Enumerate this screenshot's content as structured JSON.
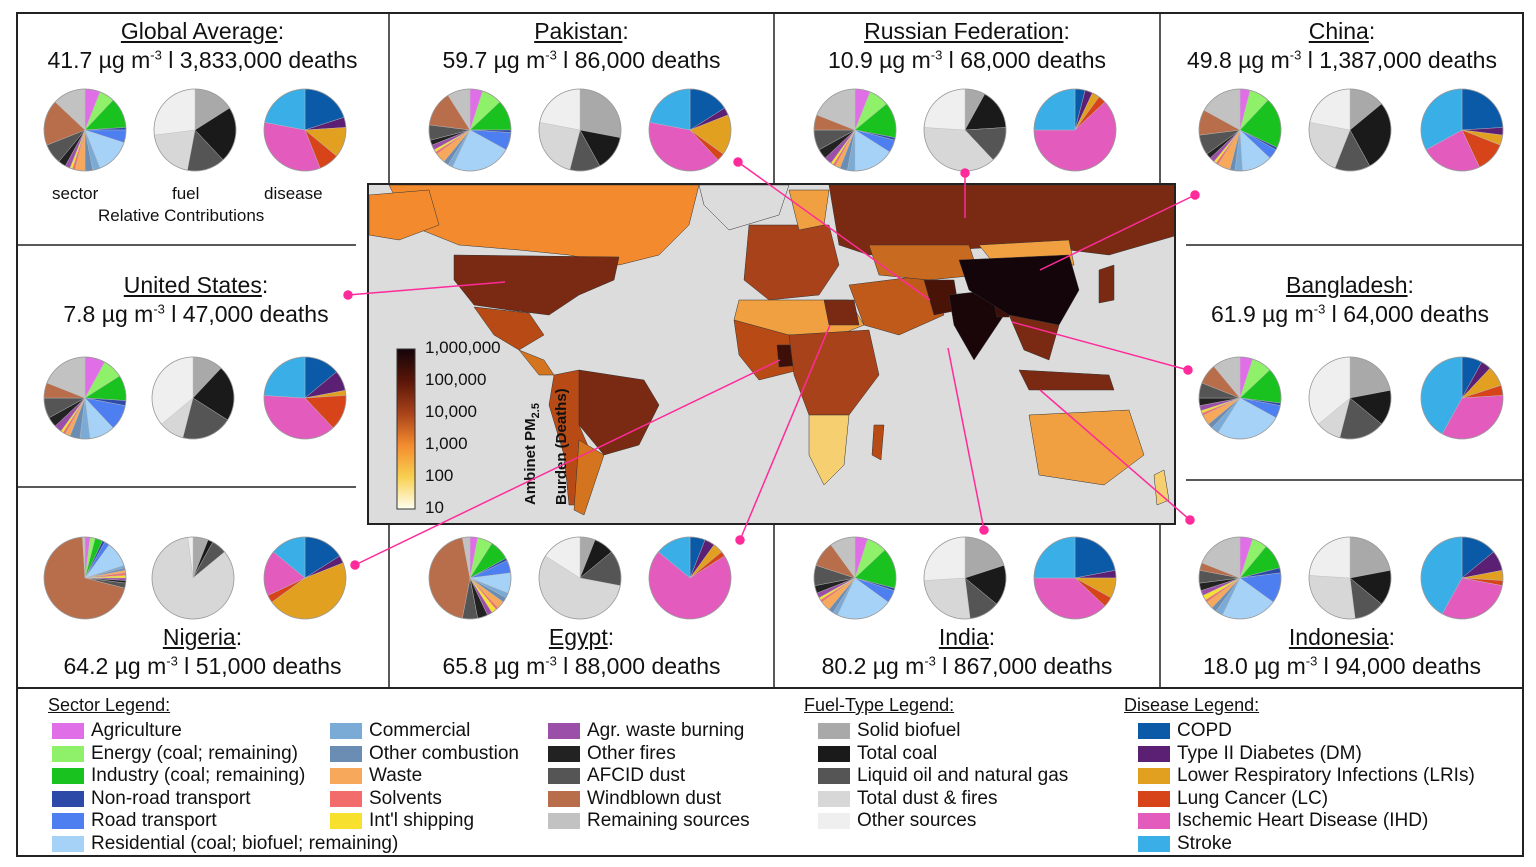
{
  "panels": [
    {
      "key": "global",
      "name": "Global Average",
      "pm": "41.7",
      "deaths": "3,833,000"
    },
    {
      "key": "pakistan",
      "name": "Pakistan",
      "pm": "59.7",
      "deaths": "86,000"
    },
    {
      "key": "russia",
      "name": "Russian Federation",
      "pm": "10.9",
      "deaths": "68,000"
    },
    {
      "key": "china",
      "name": "China",
      "pm": "49.8",
      "deaths": "1,387,000"
    },
    {
      "key": "us",
      "name": "United States",
      "pm": "7.8",
      "deaths": "47,000"
    },
    {
      "key": "bangladesh",
      "name": "Bangladesh",
      "pm": "61.9",
      "deaths": "64,000"
    },
    {
      "key": "nigeria",
      "name": "Nigeria",
      "pm": "64.2",
      "deaths": "51,000"
    },
    {
      "key": "egypt",
      "name": "Egypt",
      "pm": "65.8",
      "deaths": "88,000"
    },
    {
      "key": "india",
      "name": "India",
      "pm": "80.2",
      "deaths": "867,000"
    },
    {
      "key": "indonesia",
      "name": "Indonesia",
      "pm": "18.0",
      "deaths": "94,000"
    }
  ],
  "units": {
    "pm_unit": "µg m",
    "pm_exp": "-3",
    "sep": " l ",
    "deaths_word": "deaths"
  },
  "pie_captions": {
    "sector": "sector",
    "fuel": "fuel",
    "disease": "disease",
    "relative": "Relative Contributions"
  },
  "colorbar": {
    "ticks": [
      "1,000,000",
      "100,000",
      "10,000",
      "1,000",
      "100",
      "10"
    ],
    "label_line1": "Ambinet PM",
    "label_sub": "2.5",
    "label_line2": "Burden (Deaths)"
  },
  "legends": {
    "sector_title": "Sector Legend:",
    "fuel_title": "Fuel-Type Legend:",
    "disease_title": "Disease Legend:",
    "sector": [
      {
        "label": "Agriculture",
        "color": "#e06ee6"
      },
      {
        "label": "Energy (coal; remaining)",
        "color": "#8ff06a"
      },
      {
        "label": "Industry (coal; remaining)",
        "color": "#19c21e"
      },
      {
        "label": "Non-road transport",
        "color": "#2d4aa8"
      },
      {
        "label": "Road transport",
        "color": "#4e7ff0"
      },
      {
        "label": "Residential (coal; biofuel; remaining)",
        "color": "#a6d2f7"
      },
      {
        "label": "Commercial",
        "color": "#7aaad6"
      },
      {
        "label": "Other combustion",
        "color": "#6b8cb3"
      },
      {
        "label": "Waste",
        "color": "#f8a85a"
      },
      {
        "label": "Solvents",
        "color": "#f26c6c"
      },
      {
        "label": "Int'l shipping",
        "color": "#f7e12e"
      },
      {
        "label": "Agr. waste burning",
        "color": "#9b4fa8"
      },
      {
        "label": "Other fires",
        "color": "#222222"
      },
      {
        "label": "AFCID dust",
        "color": "#555555"
      },
      {
        "label": "Windblown dust",
        "color": "#b86d4b"
      },
      {
        "label": "Remaining sources",
        "color": "#c2c2c2"
      }
    ],
    "fuel": [
      {
        "label": "Solid biofuel",
        "color": "#a9a9a9"
      },
      {
        "label": "Total coal",
        "color": "#1a1a1a"
      },
      {
        "label": "Liquid oil and natural gas",
        "color": "#555555"
      },
      {
        "label": "Total dust & fires",
        "color": "#d7d7d7"
      },
      {
        "label": "Other sources",
        "color": "#efefef"
      }
    ],
    "disease": [
      {
        "label": "COPD",
        "color": "#0a5aa8"
      },
      {
        "label": "Type II Diabetes (DM)",
        "color": "#5b1f73"
      },
      {
        "label": "Lower Respiratory Infections (LRIs)",
        "color": "#e2a020"
      },
      {
        "label": "Lung Cancer (LC)",
        "color": "#d8441a"
      },
      {
        "label": "Ischemic Heart Disease (IHD)",
        "color": "#e35cbd"
      },
      {
        "label": "Stroke",
        "color": "#3aaee6"
      }
    ]
  },
  "pie_fractions": {
    "global": {
      "sector": [
        6,
        6,
        12,
        1,
        5,
        14,
        3,
        3,
        4,
        1,
        1,
        2,
        3,
        8,
        18,
        13
      ],
      "fuel": [
        16,
        22,
        15,
        20,
        27
      ],
      "disease": [
        20,
        4,
        12,
        8,
        34,
        22
      ]
    },
    "pakistan": {
      "sector": [
        5,
        8,
        12,
        1,
        7,
        24,
        2,
        2,
        4,
        1,
        1,
        2,
        2,
        6,
        14,
        9
      ],
      "fuel": [
        28,
        14,
        12,
        24,
        22
      ],
      "disease": [
        16,
        3,
        16,
        3,
        40,
        22
      ]
    },
    "russia": {
      "sector": [
        6,
        8,
        14,
        1,
        5,
        16,
        3,
        3,
        2,
        1,
        1,
        3,
        4,
        8,
        6,
        19
      ],
      "fuel": [
        8,
        16,
        14,
        38,
        24
      ],
      "disease": [
        4,
        3,
        3,
        3,
        62,
        25
      ]
    },
    "china": {
      "sector": [
        4,
        8,
        20,
        1,
        4,
        12,
        3,
        2,
        5,
        1,
        1,
        2,
        2,
        8,
        10,
        17
      ],
      "fuel": [
        14,
        28,
        14,
        22,
        22
      ],
      "disease": [
        24,
        3,
        4,
        12,
        24,
        33
      ]
    },
    "us": {
      "sector": [
        8,
        8,
        10,
        2,
        10,
        10,
        4,
        4,
        2,
        1,
        1,
        3,
        4,
        8,
        6,
        19
      ],
      "fuel": [
        12,
        22,
        20,
        10,
        36
      ],
      "disease": [
        14,
        8,
        2,
        14,
        38,
        24
      ]
    },
    "bangladesh": {
      "sector": [
        5,
        8,
        14,
        1,
        5,
        26,
        3,
        2,
        4,
        1,
        1,
        2,
        3,
        6,
        8,
        11
      ],
      "fuel": [
        22,
        14,
        18,
        10,
        36
      ],
      "disease": [
        8,
        4,
        8,
        4,
        34,
        42
      ]
    },
    "nigeria": {
      "sector": [
        2,
        2,
        3,
        1,
        2,
        10,
        1,
        1,
        1,
        1,
        1,
        1,
        1,
        2,
        70,
        1
      ],
      "fuel": [
        6,
        2,
        6,
        84,
        2
      ],
      "disease": [
        16,
        3,
        46,
        3,
        18,
        14
      ]
    },
    "egypt": {
      "sector": [
        3,
        6,
        8,
        1,
        5,
        8,
        2,
        2,
        3,
        1,
        2,
        2,
        4,
        6,
        44,
        3
      ],
      "fuel": [
        6,
        8,
        14,
        56,
        16
      ],
      "disease": [
        6,
        4,
        4,
        2,
        70,
        14
      ]
    },
    "india": {
      "sector": [
        5,
        8,
        16,
        1,
        5,
        22,
        2,
        2,
        4,
        1,
        1,
        2,
        3,
        8,
        10,
        10
      ],
      "fuel": [
        20,
        16,
        12,
        26,
        26
      ],
      "disease": [
        22,
        3,
        8,
        4,
        38,
        25
      ]
    },
    "indonesia": {
      "sector": [
        5,
        6,
        10,
        2,
        12,
        22,
        3,
        2,
        3,
        1,
        2,
        2,
        3,
        5,
        3,
        19
      ],
      "fuel": [
        22,
        14,
        12,
        28,
        24
      ],
      "disease": [
        14,
        8,
        4,
        2,
        30,
        42
      ]
    }
  }
}
